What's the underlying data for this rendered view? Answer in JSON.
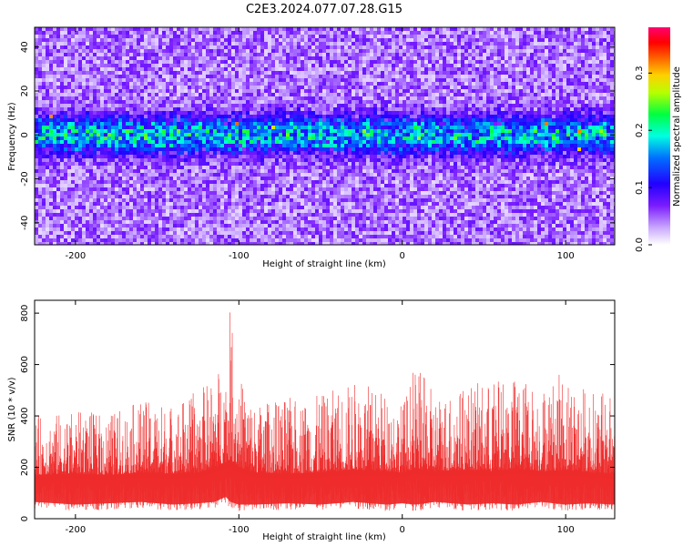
{
  "title": "C2E3.2024.077.07.28.G15",
  "colors": {
    "line": "#ee2b2b",
    "colormap": [
      "#ffffff",
      "#6a00ff",
      "#0000ff",
      "#00ffff",
      "#00ff00",
      "#ffff00",
      "#ff6600",
      "#ff0000",
      "#ff0066"
    ]
  },
  "chart_data": [
    {
      "type": "heatmap",
      "title": "",
      "xlabel": "Height of straight line (km)",
      "ylabel": "Frequency (Hz)",
      "xlim": [
        -225,
        130
      ],
      "ylim": [
        -50,
        49
      ],
      "xticks": [
        -200,
        -100,
        0,
        100
      ],
      "yticks": [
        -40,
        -20,
        0,
        20,
        40
      ],
      "colorbar": {
        "label": "Normalized spectral amplitude",
        "range": [
          0.0,
          0.38
        ],
        "ticks": [
          0.0,
          0.1,
          0.2,
          0.3
        ]
      },
      "description_values": {
        "band_center_hz": 0,
        "band_halfwidth_hz": 8,
        "band_typical_amplitude": 0.14,
        "background_amplitude": 0.05,
        "peak_amplitude": 0.33
      }
    },
    {
      "type": "line",
      "title": "",
      "xlabel": "Height of straight line (km)",
      "ylabel": "SNR (10 * v/v)",
      "xlim": [
        -225,
        130
      ],
      "ylim": [
        0,
        850
      ],
      "xticks": [
        -200,
        -100,
        0,
        100
      ],
      "yticks": [
        0,
        200,
        400,
        600,
        800
      ],
      "series": [
        {
          "x": [
            -225,
            -200,
            -180,
            -160,
            -140,
            -125,
            -115,
            -108,
            -105,
            -100,
            -90,
            -70,
            -50,
            -30,
            -10,
            0,
            8,
            20,
            40,
            55,
            70,
            85,
            100,
            115,
            130
          ],
          "upper_envelope": [
            400,
            420,
            410,
            460,
            450,
            500,
            560,
            650,
            845,
            560,
            450,
            470,
            480,
            540,
            500,
            450,
            600,
            490,
            520,
            540,
            560,
            520,
            580,
            500,
            480
          ],
          "lower_envelope": [
            40,
            30,
            35,
            40,
            30,
            35,
            40,
            60,
            40,
            30,
            30,
            35,
            30,
            40,
            30,
            35,
            30,
            40,
            30,
            35,
            30,
            40,
            30,
            35,
            30
          ],
          "typical": [
            170,
            175,
            170,
            180,
            175,
            180,
            200,
            220,
            230,
            200,
            180,
            175,
            180,
            190,
            185,
            180,
            195,
            185,
            190,
            185,
            195,
            185,
            190,
            180,
            175
          ]
        }
      ]
    }
  ]
}
